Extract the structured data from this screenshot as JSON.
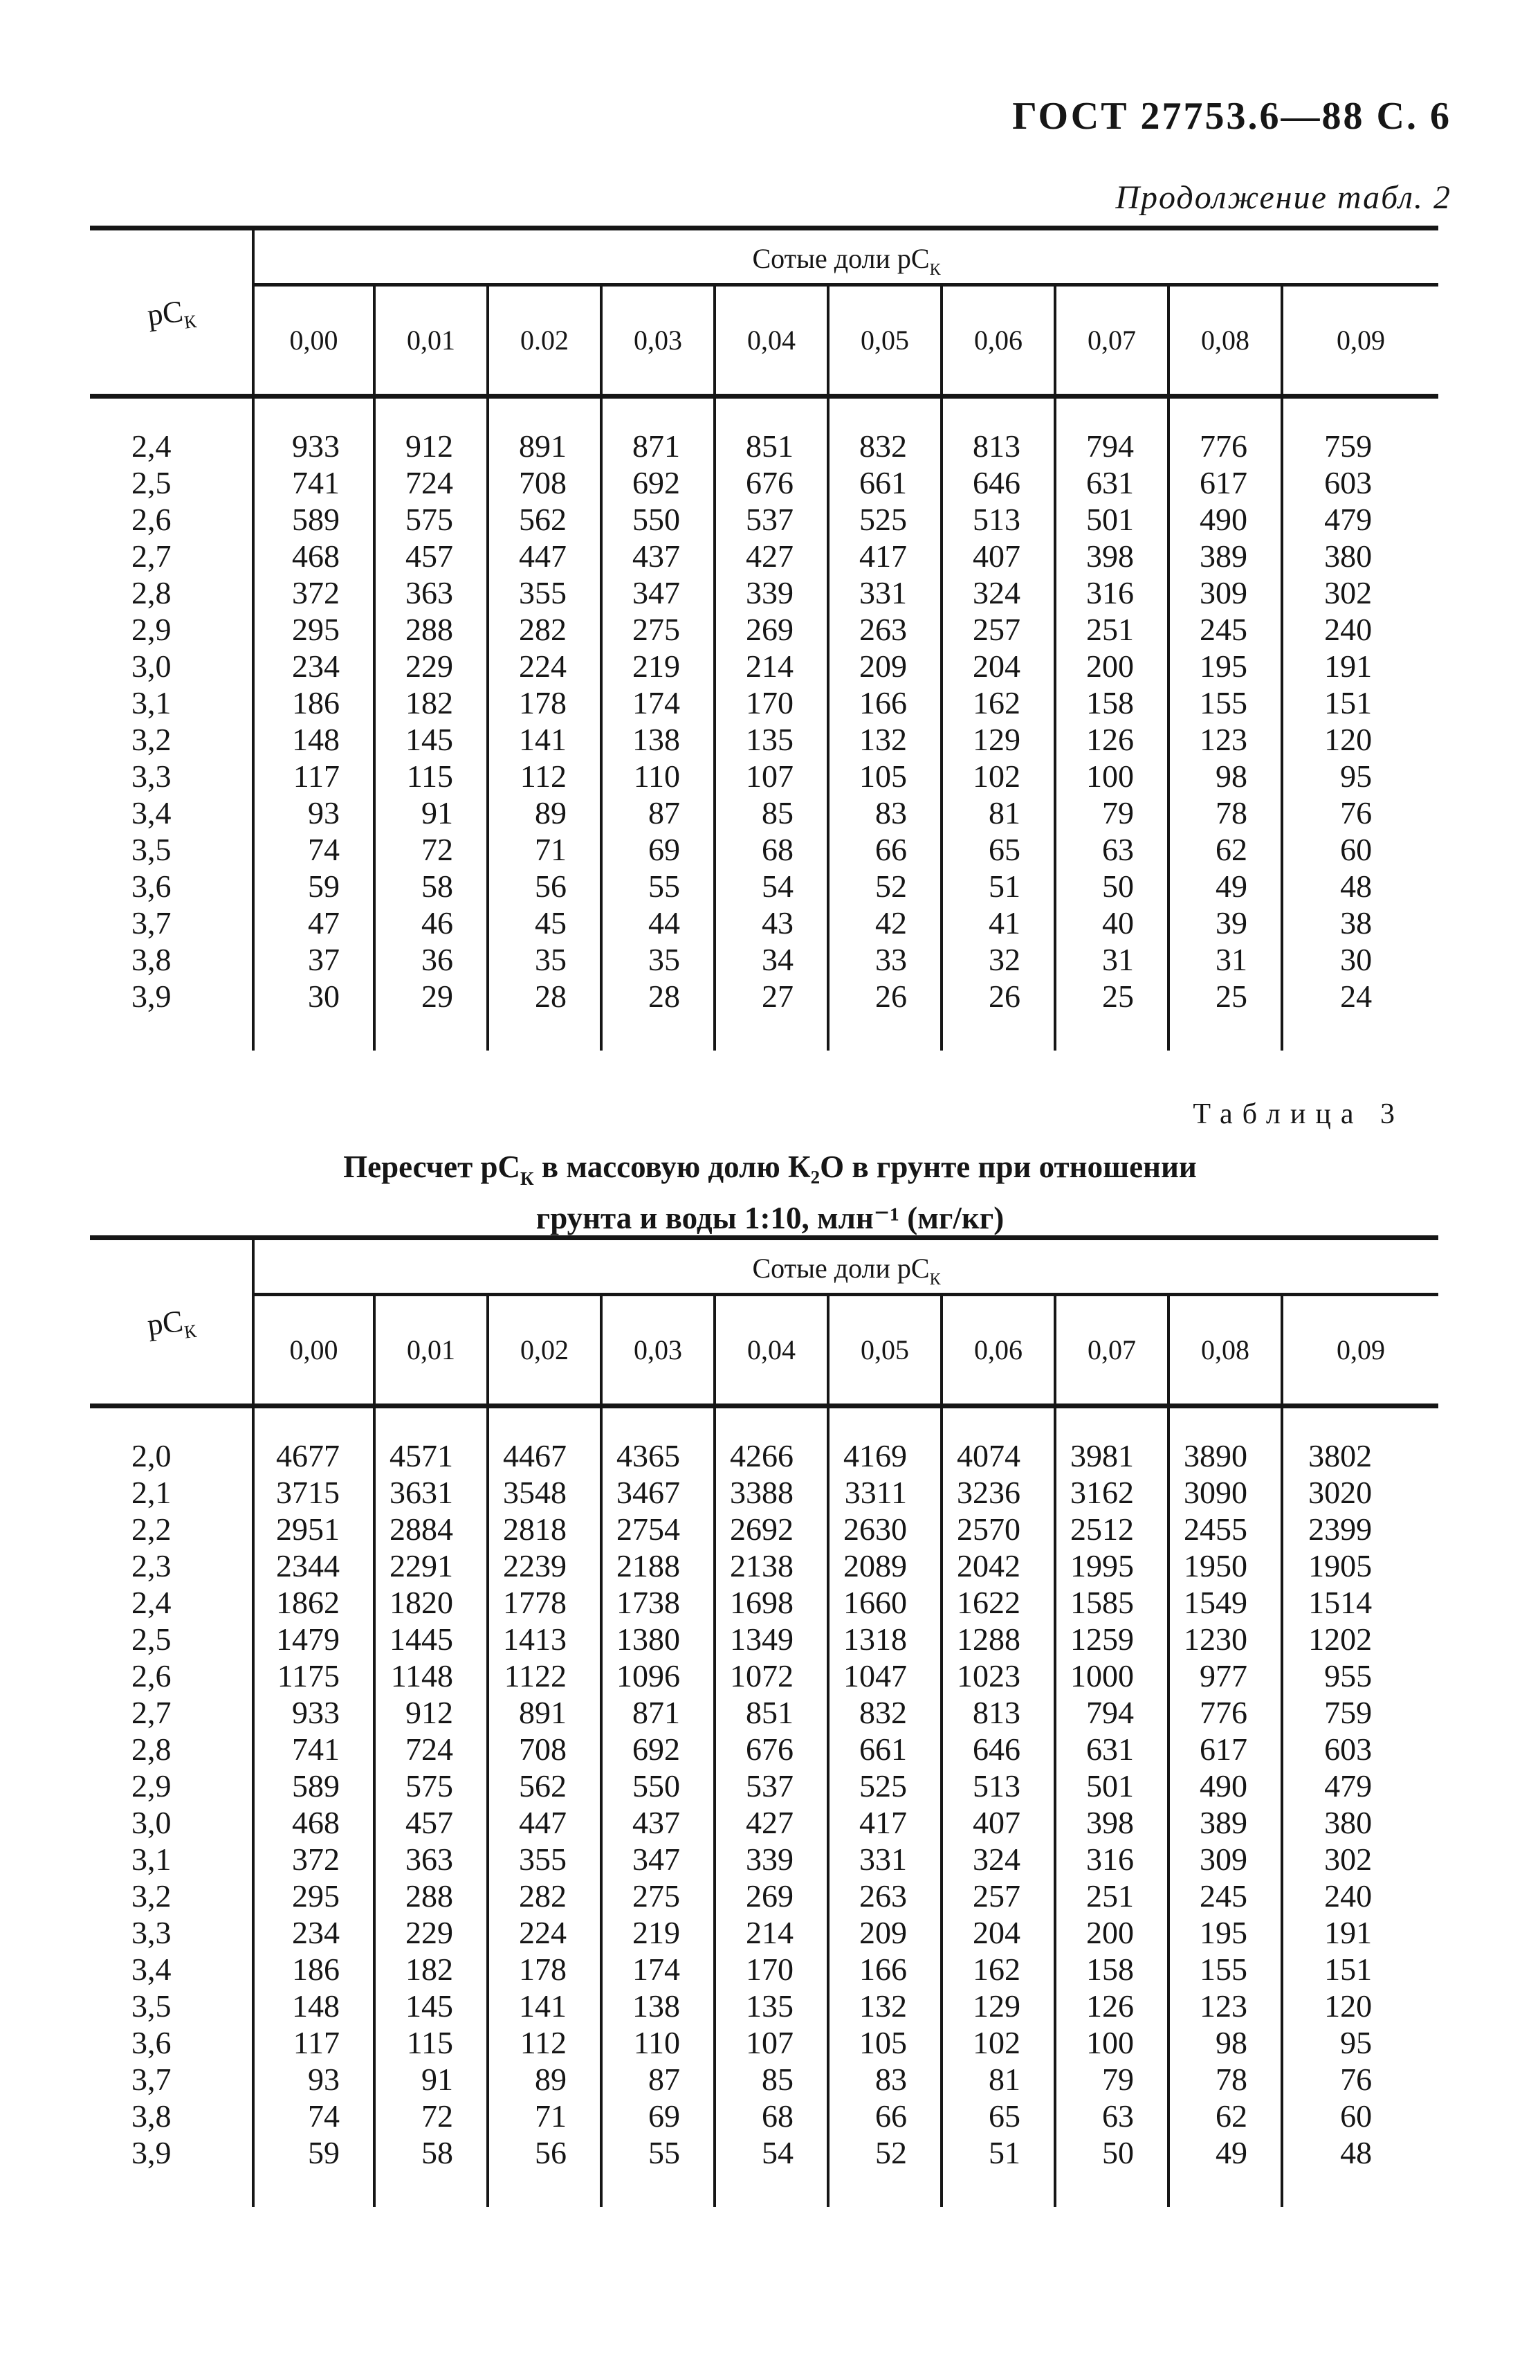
{
  "page": {
    "doc_ref": "ГОСТ 27753.6—88 С. 6",
    "continuation_caption": "Продолжение табл. 2"
  },
  "table2": {
    "corner": {
      "base": "рС",
      "sub": "К"
    },
    "span_header": {
      "text": "Сотые доли рС",
      "sub": "К"
    },
    "col_headers": [
      "0,00",
      "0,01",
      "0.02",
      "0,03",
      "0,04",
      "0,05",
      "0,06",
      "0,07",
      "0,08",
      "0,09"
    ],
    "rows": [
      {
        "label": "2,4",
        "values": [
          "933",
          "912",
          "891",
          "871",
          "851",
          "832",
          "813",
          "794",
          "776",
          "759"
        ]
      },
      {
        "label": "2,5",
        "values": [
          "741",
          "724",
          "708",
          "692",
          "676",
          "661",
          "646",
          "631",
          "617",
          "603"
        ]
      },
      {
        "label": "2,6",
        "values": [
          "589",
          "575",
          "562",
          "550",
          "537",
          "525",
          "513",
          "501",
          "490",
          "479"
        ]
      },
      {
        "label": "2,7",
        "values": [
          "468",
          "457",
          "447",
          "437",
          "427",
          "417",
          "407",
          "398",
          "389",
          "380"
        ]
      },
      {
        "label": "2,8",
        "values": [
          "372",
          "363",
          "355",
          "347",
          "339",
          "331",
          "324",
          "316",
          "309",
          "302"
        ]
      },
      {
        "label": "2,9",
        "values": [
          "295",
          "288",
          "282",
          "275",
          "269",
          "263",
          "257",
          "251",
          "245",
          "240"
        ]
      },
      {
        "label": "3,0",
        "values": [
          "234",
          "229",
          "224",
          "219",
          "214",
          "209",
          "204",
          "200",
          "195",
          "191"
        ]
      },
      {
        "label": "3,1",
        "values": [
          "186",
          "182",
          "178",
          "174",
          "170",
          "166",
          "162",
          "158",
          "155",
          "151"
        ]
      },
      {
        "label": "3,2",
        "values": [
          "148",
          "145",
          "141",
          "138",
          "135",
          "132",
          "129",
          "126",
          "123",
          "120"
        ]
      },
      {
        "label": "3,3",
        "values": [
          "117",
          "115",
          "112",
          "110",
          "107",
          "105",
          "102",
          "100",
          "98",
          "95"
        ]
      },
      {
        "label": "3,4",
        "values": [
          "93",
          "91",
          "89",
          "87",
          "85",
          "83",
          "81",
          "79",
          "78",
          "76"
        ]
      },
      {
        "label": "3,5",
        "values": [
          "74",
          "72",
          "71",
          "69",
          "68",
          "66",
          "65",
          "63",
          "62",
          "60"
        ]
      },
      {
        "label": "3,6",
        "values": [
          "59",
          "58",
          "56",
          "55",
          "54",
          "52",
          "51",
          "50",
          "49",
          "48"
        ]
      },
      {
        "label": "3,7",
        "values": [
          "47",
          "46",
          "45",
          "44",
          "43",
          "42",
          "41",
          "40",
          "39",
          "38"
        ]
      },
      {
        "label": "3,8",
        "values": [
          "37",
          "36",
          "35",
          "35",
          "34",
          "33",
          "32",
          "31",
          "31",
          "30"
        ]
      },
      {
        "label": "3,9",
        "values": [
          "30",
          "29",
          "28",
          "28",
          "27",
          "26",
          "26",
          "25",
          "25",
          "24"
        ]
      }
    ]
  },
  "table3": {
    "caption": "Таблица 3",
    "title": {
      "line1_pre": "Пересчет рС",
      "line1_sub": "К",
      "line1_post": " в массовую долю К₂О в грунте при отношении",
      "line2": "грунта и воды 1:10, млн⁻¹ (мг/кг)"
    },
    "corner": {
      "base": "рС",
      "sub": "К"
    },
    "span_header": {
      "text": "Сотые доли рС",
      "sub": "К"
    },
    "col_headers": [
      "0,00",
      "0,01",
      "0,02",
      "0,03",
      "0,04",
      "0,05",
      "0,06",
      "0,07",
      "0,08",
      "0,09"
    ],
    "rows": [
      {
        "label": "2,0",
        "values": [
          "4677",
          "4571",
          "4467",
          "4365",
          "4266",
          "4169",
          "4074",
          "3981",
          "3890",
          "3802"
        ]
      },
      {
        "label": "2,1",
        "values": [
          "3715",
          "3631",
          "3548",
          "3467",
          "3388",
          "3311",
          "3236",
          "3162",
          "3090",
          "3020"
        ]
      },
      {
        "label": "2,2",
        "values": [
          "2951",
          "2884",
          "2818",
          "2754",
          "2692",
          "2630",
          "2570",
          "2512",
          "2455",
          "2399"
        ]
      },
      {
        "label": "2,3",
        "values": [
          "2344",
          "2291",
          "2239",
          "2188",
          "2138",
          "2089",
          "2042",
          "1995",
          "1950",
          "1905"
        ]
      },
      {
        "label": "2,4",
        "values": [
          "1862",
          "1820",
          "1778",
          "1738",
          "1698",
          "1660",
          "1622",
          "1585",
          "1549",
          "1514"
        ]
      },
      {
        "label": "2,5",
        "values": [
          "1479",
          "1445",
          "1413",
          "1380",
          "1349",
          "1318",
          "1288",
          "1259",
          "1230",
          "1202"
        ]
      },
      {
        "label": "2,6",
        "values": [
          "1175",
          "1148",
          "1122",
          "1096",
          "1072",
          "1047",
          "1023",
          "1000",
          "977",
          "955"
        ]
      },
      {
        "label": "2,7",
        "values": [
          "933",
          "912",
          "891",
          "871",
          "851",
          "832",
          "813",
          "794",
          "776",
          "759"
        ]
      },
      {
        "label": "2,8",
        "values": [
          "741",
          "724",
          "708",
          "692",
          "676",
          "661",
          "646",
          "631",
          "617",
          "603"
        ]
      },
      {
        "label": "2,9",
        "values": [
          "589",
          "575",
          "562",
          "550",
          "537",
          "525",
          "513",
          "501",
          "490",
          "479"
        ]
      },
      {
        "label": "3,0",
        "values": [
          "468",
          "457",
          "447",
          "437",
          "427",
          "417",
          "407",
          "398",
          "389",
          "380"
        ]
      },
      {
        "label": "3,1",
        "values": [
          "372",
          "363",
          "355",
          "347",
          "339",
          "331",
          "324",
          "316",
          "309",
          "302"
        ]
      },
      {
        "label": "3,2",
        "values": [
          "295",
          "288",
          "282",
          "275",
          "269",
          "263",
          "257",
          "251",
          "245",
          "240"
        ]
      },
      {
        "label": "3,3",
        "values": [
          "234",
          "229",
          "224",
          "219",
          "214",
          "209",
          "204",
          "200",
          "195",
          "191"
        ]
      },
      {
        "label": "3,4",
        "values": [
          "186",
          "182",
          "178",
          "174",
          "170",
          "166",
          "162",
          "158",
          "155",
          "151"
        ]
      },
      {
        "label": "3,5",
        "values": [
          "148",
          "145",
          "141",
          "138",
          "135",
          "132",
          "129",
          "126",
          "123",
          "120"
        ]
      },
      {
        "label": "3,6",
        "values": [
          "117",
          "115",
          "112",
          "110",
          "107",
          "105",
          "102",
          "100",
          "98",
          "95"
        ]
      },
      {
        "label": "3,7",
        "values": [
          "93",
          "91",
          "89",
          "87",
          "85",
          "83",
          "81",
          "79",
          "78",
          "76"
        ]
      },
      {
        "label": "3,8",
        "values": [
          "74",
          "72",
          "71",
          "69",
          "68",
          "66",
          "65",
          "63",
          "62",
          "60"
        ]
      },
      {
        "label": "3,9",
        "values": [
          "59",
          "58",
          "56",
          "55",
          "54",
          "52",
          "51",
          "50",
          "49",
          "48"
        ]
      }
    ]
  }
}
